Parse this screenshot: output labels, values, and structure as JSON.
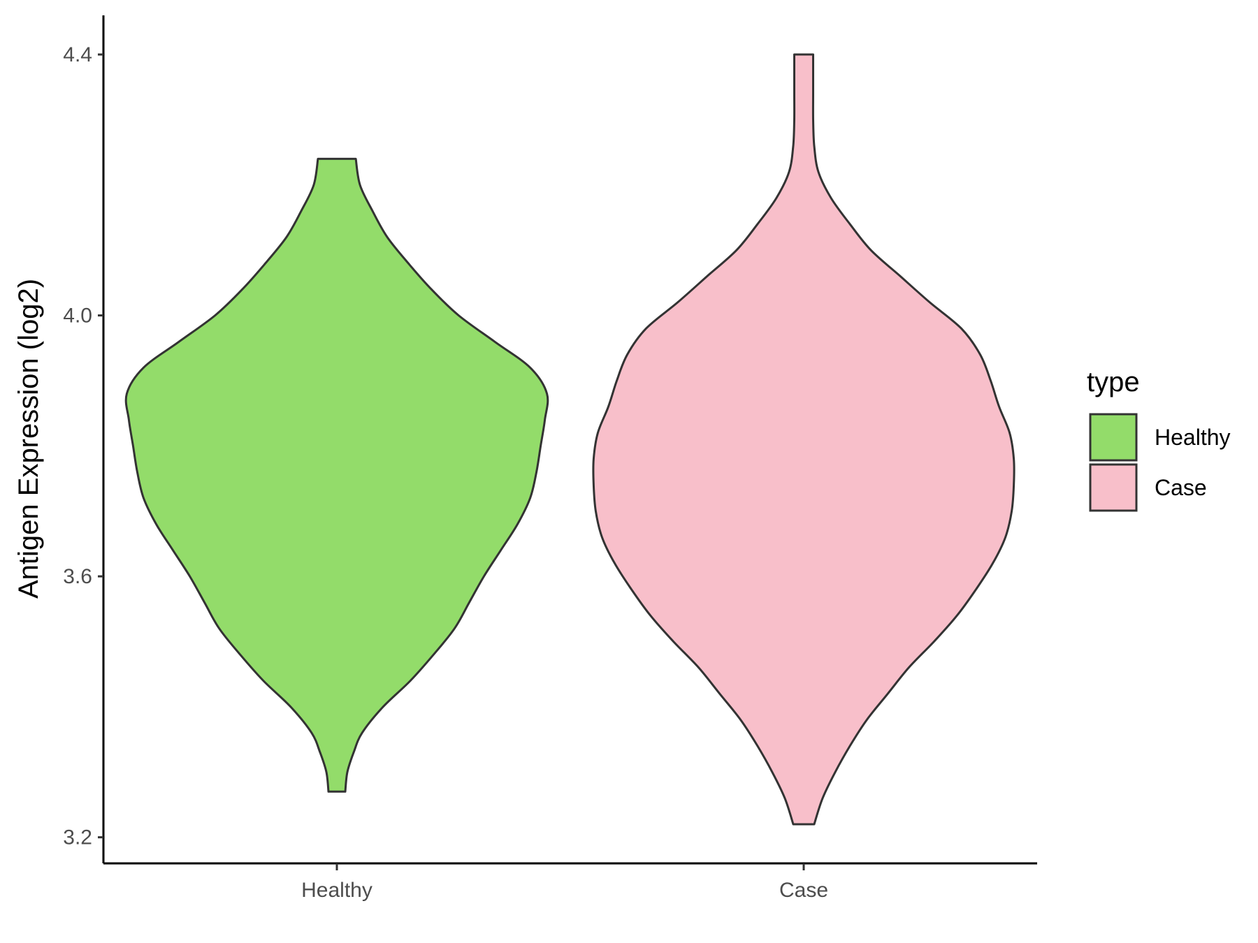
{
  "chart_data": {
    "type": "violin",
    "ylabel": "Antigen Expression (log2)",
    "xlabel": "",
    "ylim": [
      3.16,
      4.46
    ],
    "yticks": [
      3.2,
      3.6,
      4.0,
      4.4
    ],
    "ytick_labels": [
      "3.2",
      "3.6",
      "4.0",
      "4.4"
    ],
    "categories": [
      "Healthy",
      "Case"
    ],
    "grid": false,
    "legend": {
      "title": "type",
      "placement": "right",
      "entries": [
        "Healthy",
        "Case"
      ]
    },
    "series": [
      {
        "name": "Healthy",
        "color": "#93dc6a",
        "min": 3.27,
        "max": 4.24,
        "profile": [
          [
            3.27,
            0.04
          ],
          [
            3.3,
            0.05
          ],
          [
            3.33,
            0.08
          ],
          [
            3.36,
            0.12
          ],
          [
            3.4,
            0.22
          ],
          [
            3.44,
            0.35
          ],
          [
            3.48,
            0.46
          ],
          [
            3.52,
            0.56
          ],
          [
            3.56,
            0.63
          ],
          [
            3.6,
            0.7
          ],
          [
            3.64,
            0.78
          ],
          [
            3.68,
            0.86
          ],
          [
            3.72,
            0.92
          ],
          [
            3.76,
            0.95
          ],
          [
            3.8,
            0.97
          ],
          [
            3.84,
            0.99
          ],
          [
            3.88,
            1.0
          ],
          [
            3.92,
            0.92
          ],
          [
            3.96,
            0.75
          ],
          [
            4.0,
            0.58
          ],
          [
            4.04,
            0.45
          ],
          [
            4.08,
            0.34
          ],
          [
            4.12,
            0.24
          ],
          [
            4.16,
            0.17
          ],
          [
            4.2,
            0.11
          ],
          [
            4.24,
            0.09
          ]
        ]
      },
      {
        "name": "Case",
        "color": "#f8bfca",
        "min": 3.22,
        "max": 4.4,
        "profile": [
          [
            3.22,
            0.05
          ],
          [
            3.26,
            0.09
          ],
          [
            3.3,
            0.15
          ],
          [
            3.34,
            0.22
          ],
          [
            3.38,
            0.3
          ],
          [
            3.42,
            0.4
          ],
          [
            3.46,
            0.5
          ],
          [
            3.5,
            0.62
          ],
          [
            3.54,
            0.73
          ],
          [
            3.58,
            0.82
          ],
          [
            3.62,
            0.9
          ],
          [
            3.66,
            0.96
          ],
          [
            3.7,
            0.99
          ],
          [
            3.74,
            1.0
          ],
          [
            3.78,
            1.0
          ],
          [
            3.82,
            0.98
          ],
          [
            3.86,
            0.93
          ],
          [
            3.9,
            0.89
          ],
          [
            3.94,
            0.84
          ],
          [
            3.98,
            0.75
          ],
          [
            4.02,
            0.6
          ],
          [
            4.06,
            0.46
          ],
          [
            4.1,
            0.32
          ],
          [
            4.14,
            0.22
          ],
          [
            4.18,
            0.13
          ],
          [
            4.22,
            0.07
          ],
          [
            4.26,
            0.05
          ],
          [
            4.3,
            0.045
          ],
          [
            4.34,
            0.045
          ],
          [
            4.38,
            0.045
          ],
          [
            4.4,
            0.045
          ]
        ]
      }
    ]
  }
}
